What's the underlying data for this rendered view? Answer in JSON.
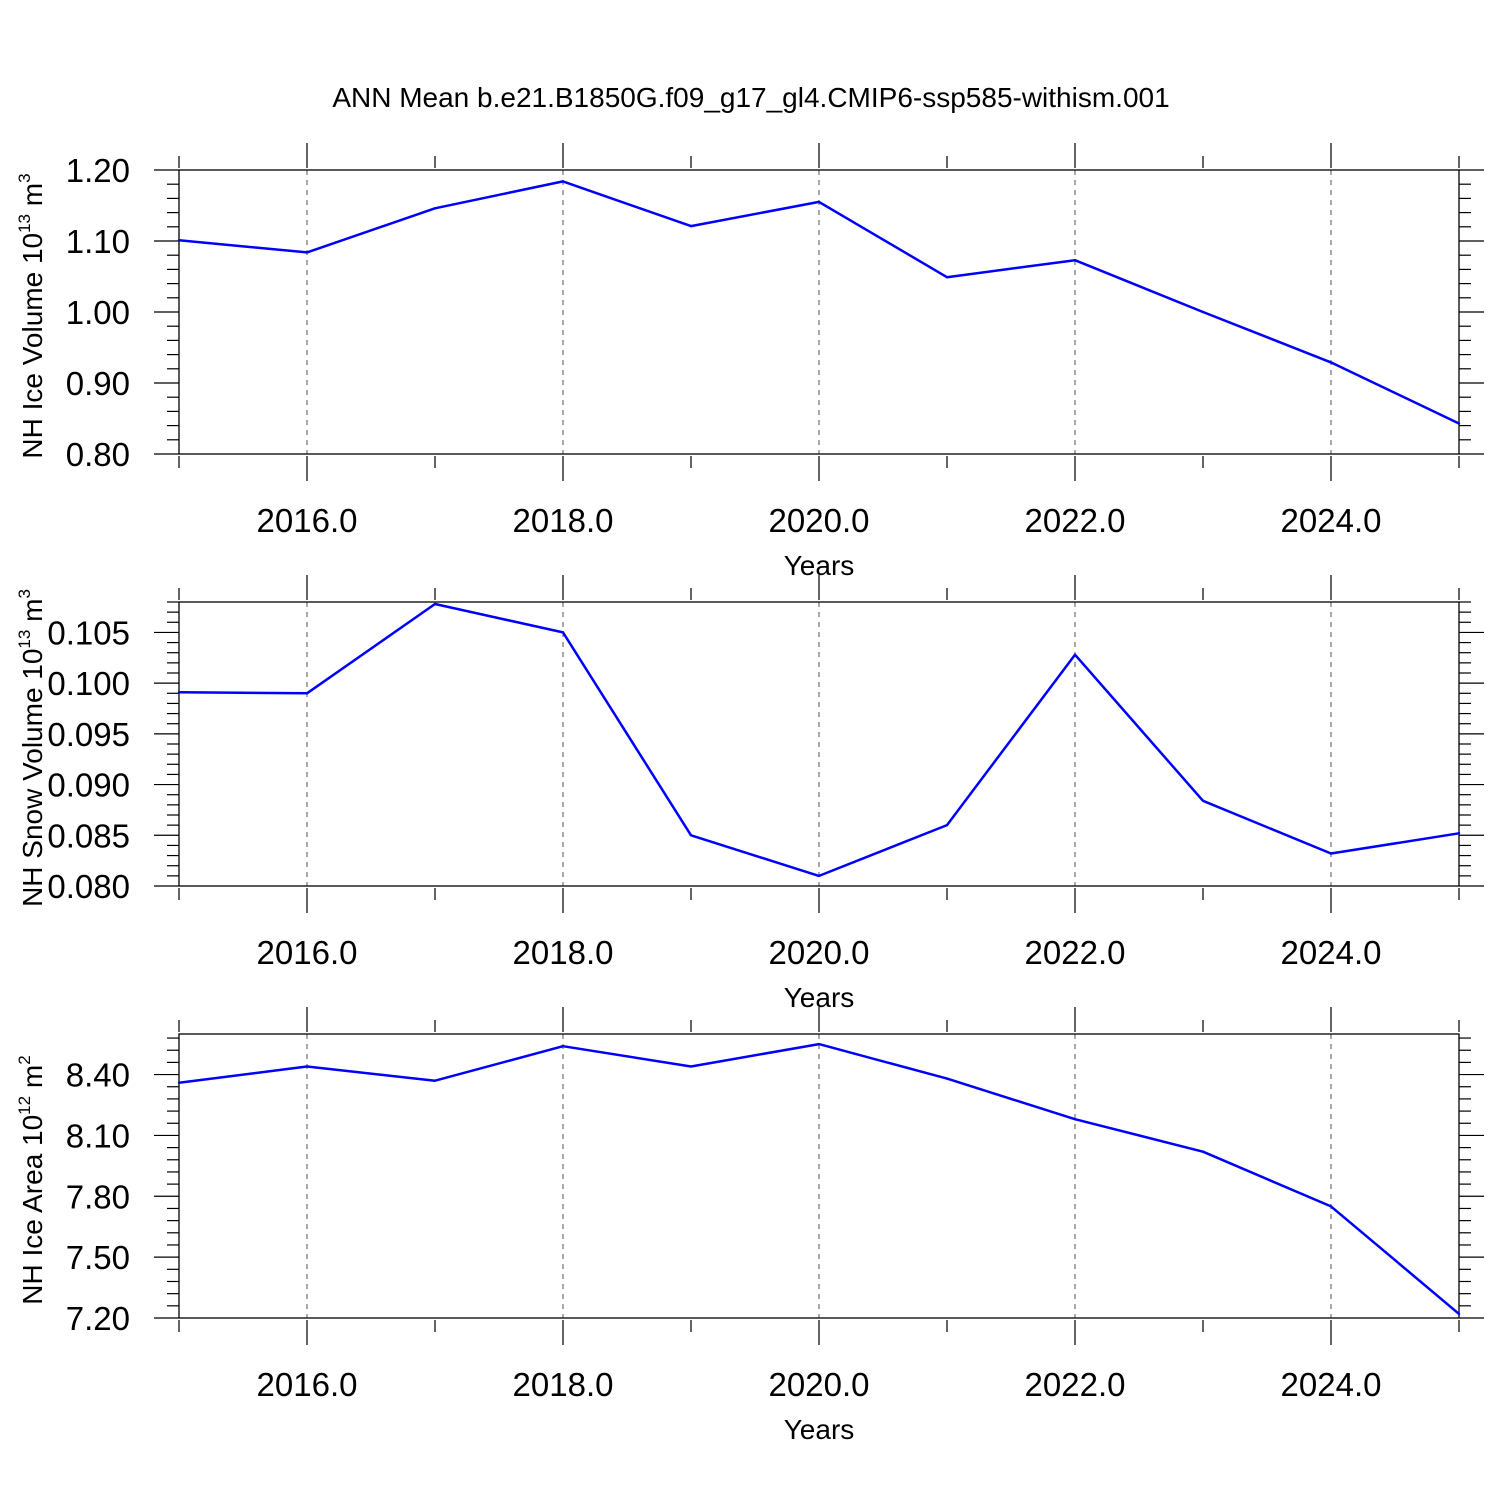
{
  "title": "ANN Mean b.e21.B1850G.f09_g17_gl4.CMIP6-ssp585-withism.001",
  "line_color": "#0000ff",
  "chart_data": [
    {
      "type": "line",
      "ylabel": {
        "text": "NH Ice Volume 10",
        "exponent": "13",
        "unit": "m",
        "unit_exponent": "3"
      },
      "xlabel": "Years",
      "x": [
        2015,
        2016,
        2017,
        2018,
        2019,
        2020,
        2021,
        2022,
        2023,
        2024,
        2025
      ],
      "values": [
        1.101,
        1.084,
        1.146,
        1.184,
        1.121,
        1.155,
        1.049,
        1.073,
        1.0,
        0.929,
        0.843
      ],
      "xlim": [
        2015,
        2025
      ],
      "ylim": [
        0.8,
        1.2
      ],
      "xticks": [
        2016,
        2018,
        2020,
        2022,
        2024
      ],
      "xtick_labels": [
        "2016.0",
        "2018.0",
        "2020.0",
        "2022.0",
        "2024.0"
      ],
      "yticks": [
        0.8,
        0.9,
        1.0,
        1.1,
        1.2
      ],
      "ytick_labels": [
        "0.80",
        "0.90",
        "1.00",
        "1.10",
        "1.20"
      ],
      "grid": "vertical dashed at major x ticks"
    },
    {
      "type": "line",
      "ylabel": {
        "text": "NH Snow Volume 10",
        "exponent": "13",
        "unit": "m",
        "unit_exponent": "3"
      },
      "xlabel": "Years",
      "x": [
        2015,
        2016,
        2017,
        2018,
        2019,
        2020,
        2021,
        2022,
        2023,
        2024,
        2025
      ],
      "values": [
        0.0991,
        0.099,
        0.1078,
        0.105,
        0.085,
        0.081,
        0.086,
        0.1028,
        0.0884,
        0.0832,
        0.0852
      ],
      "xlim": [
        2015,
        2025
      ],
      "ylim": [
        0.08,
        0.108
      ],
      "xticks": [
        2016,
        2018,
        2020,
        2022,
        2024
      ],
      "xtick_labels": [
        "2016.0",
        "2018.0",
        "2020.0",
        "2022.0",
        "2024.0"
      ],
      "yticks": [
        0.08,
        0.085,
        0.09,
        0.095,
        0.1,
        0.105
      ],
      "ytick_labels": [
        "0.080",
        "0.085",
        "0.090",
        "0.095",
        "0.100",
        "0.105"
      ],
      "grid": "vertical dashed at major x ticks"
    },
    {
      "type": "line",
      "ylabel": {
        "text": "NH Ice Area 10",
        "exponent": "12",
        "unit": "m",
        "unit_exponent": "2"
      },
      "xlabel": "Years",
      "x": [
        2015,
        2016,
        2017,
        2018,
        2019,
        2020,
        2021,
        2022,
        2023,
        2024,
        2025
      ],
      "values": [
        8.36,
        8.44,
        8.37,
        8.54,
        8.44,
        8.55,
        8.38,
        8.18,
        8.02,
        7.75,
        7.22
      ],
      "xlim": [
        2015,
        2025
      ],
      "ylim": [
        7.2,
        8.6
      ],
      "xticks": [
        2016,
        2018,
        2020,
        2022,
        2024
      ],
      "xtick_labels": [
        "2016.0",
        "2018.0",
        "2020.0",
        "2022.0",
        "2024.0"
      ],
      "yticks": [
        7.2,
        7.5,
        7.8,
        8.1,
        8.4
      ],
      "ytick_labels": [
        "7.20",
        "7.50",
        "7.80",
        "8.10",
        "8.40"
      ],
      "grid": "vertical dashed at major x ticks"
    }
  ]
}
